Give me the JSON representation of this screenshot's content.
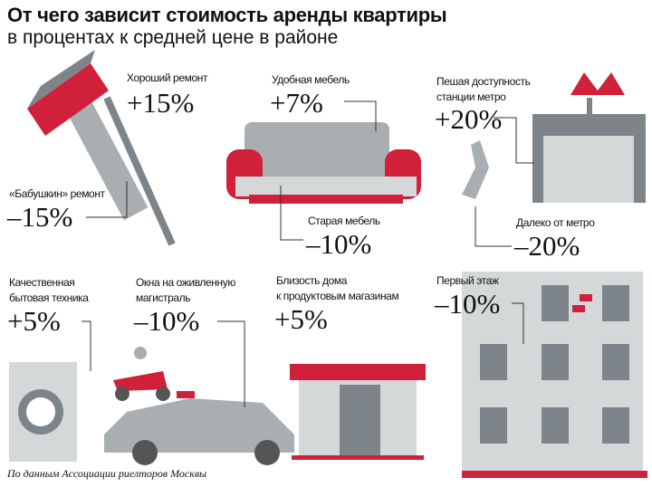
{
  "header": {
    "title": "От чего зависит стоимость аренды квартиры",
    "subtitle": "в процентах к средней цене в районе"
  },
  "factors": [
    {
      "label": "Хороший ремонт",
      "value": "+15%"
    },
    {
      "label": "«Бабушкин» ремонт",
      "value": "–15%"
    },
    {
      "label": "Удобная мебель",
      "value": "+7%"
    },
    {
      "label": "Старая мебель",
      "value": "–10%"
    },
    {
      "label_line1": "Пешая доступность",
      "label_line2": "станции метро",
      "value": "+20%"
    },
    {
      "label": "Далеко от метро",
      "value": "–20%"
    },
    {
      "label_line1": "Качественная",
      "label_line2": "бытовая техника",
      "value": "+5%"
    },
    {
      "label_line1": "Окна на оживленную",
      "label_line2": "магистраль",
      "value": "–10%"
    },
    {
      "label_line1": "Близость дома",
      "label_line2": "к продуктовым магазинам",
      "value": "+5%"
    },
    {
      "label": "Первый этаж",
      "value": "–10%"
    }
  ],
  "footer": {
    "source": "По данным Ассоциации риелторов Москвы"
  },
  "colors": {
    "red": "#d0203a",
    "gray": "#a8aeb1",
    "dark_gray": "#7d858a",
    "light_gray": "#d5d8d9"
  }
}
